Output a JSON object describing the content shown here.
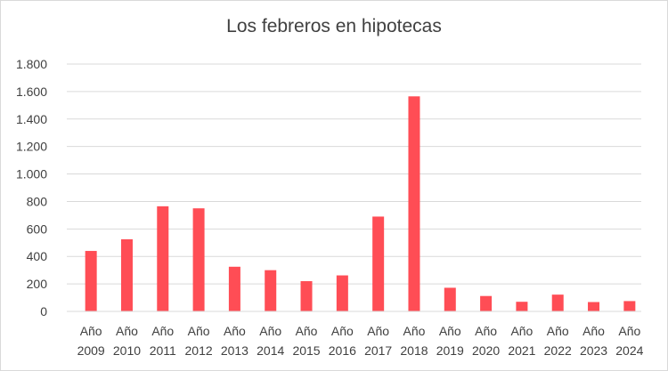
{
  "chart_data": {
    "type": "bar",
    "title": "Los febreros en hipotecas",
    "xlabel": "",
    "ylabel": "",
    "categories": [
      [
        "Año",
        "2009"
      ],
      [
        "Año",
        "2010"
      ],
      [
        "Año",
        "2011"
      ],
      [
        "Año",
        "2012"
      ],
      [
        "Año",
        "2013"
      ],
      [
        "Año",
        "2014"
      ],
      [
        "Año",
        "2015"
      ],
      [
        "Año",
        "2016"
      ],
      [
        "Año",
        "2017"
      ],
      [
        "Año",
        "2018"
      ],
      [
        "Año",
        "2019"
      ],
      [
        "Año",
        "2020"
      ],
      [
        "Año",
        "2021"
      ],
      [
        "Año",
        "2022"
      ],
      [
        "Año",
        "2023"
      ],
      [
        "Año",
        "2024"
      ]
    ],
    "values": [
      440,
      525,
      765,
      750,
      325,
      300,
      220,
      262,
      690,
      1565,
      172,
      112,
      70,
      122,
      68,
      75
    ],
    "ylim": [
      0,
      1800
    ],
    "yticks": [
      {
        "value": 0,
        "label": "0"
      },
      {
        "value": 200,
        "label": "200"
      },
      {
        "value": 400,
        "label": "400"
      },
      {
        "value": 600,
        "label": "600"
      },
      {
        "value": 800,
        "label": "800"
      },
      {
        "value": 1000,
        "label": "1.000"
      },
      {
        "value": 1200,
        "label": "1.200"
      },
      {
        "value": 1400,
        "label": "1.400"
      },
      {
        "value": 1600,
        "label": "1.600"
      },
      {
        "value": 1800,
        "label": "1.800"
      }
    ],
    "grid": true,
    "legend": "none",
    "bar_color": "#ff4d55",
    "grid_color": "#d9d9d9",
    "text_color": "#404040"
  }
}
